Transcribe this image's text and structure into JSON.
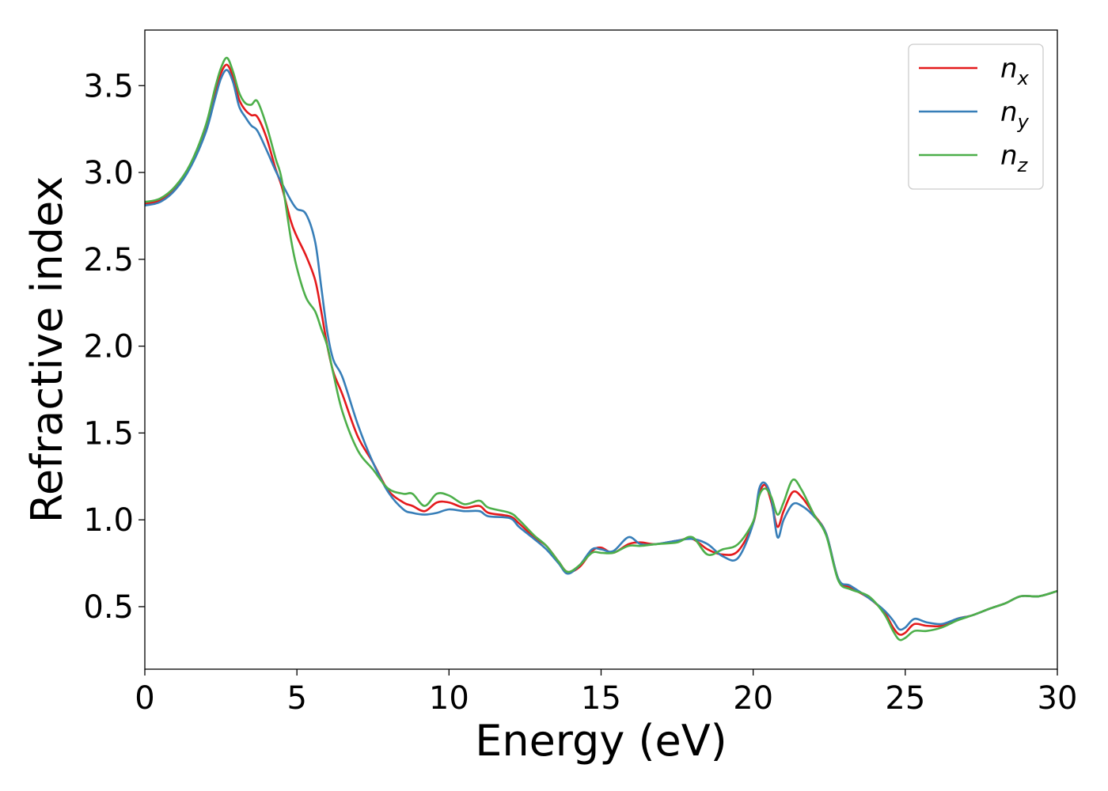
{
  "chart_data": {
    "type": "line",
    "title": "",
    "xlabel": "Energy (eV)",
    "ylabel": "Refractive index",
    "xlim": [
      0,
      30
    ],
    "ylim": [
      0.14,
      3.82
    ],
    "xticks": [
      0,
      5,
      10,
      15,
      20,
      25,
      30
    ],
    "xtick_labels": [
      "0",
      "5",
      "10",
      "15",
      "20",
      "25",
      "30"
    ],
    "yticks": [
      0.5,
      1.0,
      1.5,
      2.0,
      2.5,
      3.0,
      3.5
    ],
    "ytick_labels": [
      "0.5",
      "1.0",
      "1.5",
      "2.0",
      "2.5",
      "3.0",
      "3.5"
    ],
    "grid": false,
    "legend_position": "top-right",
    "series": [
      {
        "name": "n_x",
        "legend_base": "n",
        "legend_sub": "x",
        "color": "#e41a1c",
        "x": [
          0,
          0.5,
          1.0,
          1.5,
          2.0,
          2.3,
          2.5,
          2.7,
          2.9,
          3.1,
          3.3,
          3.5,
          3.7,
          4.0,
          4.3,
          4.5,
          4.8,
          5.0,
          5.3,
          5.6,
          5.8,
          6.0,
          6.2,
          6.5,
          7.0,
          7.5,
          8.0,
          8.5,
          8.8,
          9.2,
          9.6,
          10.0,
          10.5,
          11.0,
          11.3,
          12.0,
          12.3,
          12.8,
          13.2,
          13.6,
          13.9,
          14.3,
          14.7,
          15.0,
          15.4,
          15.9,
          16.3,
          16.8,
          17.5,
          18.0,
          18.5,
          19.0,
          19.5,
          20.0,
          20.2,
          20.4,
          20.6,
          20.8,
          21.0,
          21.3,
          21.6,
          22.0,
          22.4,
          22.8,
          23.2,
          23.8,
          24.3,
          24.6,
          24.8,
          25.0,
          25.3,
          25.7,
          26.2,
          26.7,
          27.2,
          27.8,
          28.3,
          28.8,
          29.4,
          30.0
        ],
        "y": [
          2.82,
          2.84,
          2.91,
          3.04,
          3.25,
          3.45,
          3.57,
          3.62,
          3.55,
          3.42,
          3.36,
          3.33,
          3.32,
          3.2,
          3.02,
          2.92,
          2.72,
          2.63,
          2.52,
          2.38,
          2.2,
          2.0,
          1.85,
          1.72,
          1.48,
          1.33,
          1.17,
          1.1,
          1.08,
          1.05,
          1.1,
          1.1,
          1.07,
          1.08,
          1.04,
          1.02,
          0.98,
          0.9,
          0.85,
          0.76,
          0.7,
          0.73,
          0.82,
          0.84,
          0.81,
          0.86,
          0.87,
          0.86,
          0.88,
          0.89,
          0.83,
          0.8,
          0.82,
          0.98,
          1.15,
          1.2,
          1.1,
          0.96,
          1.05,
          1.16,
          1.13,
          1.03,
          0.92,
          0.66,
          0.61,
          0.55,
          0.47,
          0.38,
          0.34,
          0.35,
          0.4,
          0.39,
          0.39,
          0.43,
          0.45,
          0.49,
          0.52,
          0.56,
          0.56,
          0.59
        ]
      },
      {
        "name": "n_y",
        "legend_base": "n",
        "legend_sub": "y",
        "color": "#377eb8",
        "x": [
          0,
          0.5,
          1.0,
          1.5,
          2.0,
          2.3,
          2.5,
          2.7,
          2.9,
          3.1,
          3.3,
          3.5,
          3.7,
          4.0,
          4.3,
          4.5,
          4.8,
          5.0,
          5.3,
          5.6,
          5.8,
          6.0,
          6.2,
          6.5,
          7.0,
          7.5,
          8.0,
          8.5,
          8.8,
          9.2,
          9.6,
          10.0,
          10.5,
          11.0,
          11.3,
          12.0,
          12.3,
          12.8,
          13.2,
          13.6,
          13.9,
          14.3,
          14.7,
          15.0,
          15.4,
          15.9,
          16.3,
          16.8,
          17.5,
          18.0,
          18.5,
          19.0,
          19.5,
          20.0,
          20.2,
          20.4,
          20.6,
          20.8,
          21.0,
          21.3,
          21.6,
          22.0,
          22.4,
          22.8,
          23.2,
          23.8,
          24.3,
          24.6,
          24.8,
          25.0,
          25.3,
          25.7,
          26.2,
          26.7,
          27.2,
          27.8,
          28.3,
          28.8,
          29.4,
          30.0
        ],
        "y": [
          2.81,
          2.83,
          2.9,
          3.03,
          3.23,
          3.42,
          3.54,
          3.59,
          3.52,
          3.38,
          3.32,
          3.27,
          3.24,
          3.13,
          3.01,
          2.94,
          2.84,
          2.79,
          2.76,
          2.6,
          2.34,
          2.08,
          1.92,
          1.82,
          1.55,
          1.33,
          1.16,
          1.06,
          1.04,
          1.03,
          1.04,
          1.06,
          1.05,
          1.05,
          1.02,
          1.01,
          0.96,
          0.89,
          0.83,
          0.75,
          0.69,
          0.74,
          0.83,
          0.83,
          0.82,
          0.9,
          0.86,
          0.86,
          0.88,
          0.89,
          0.86,
          0.79,
          0.78,
          0.98,
          1.18,
          1.21,
          1.12,
          0.9,
          1.0,
          1.09,
          1.08,
          1.02,
          0.92,
          0.66,
          0.62,
          0.55,
          0.48,
          0.42,
          0.37,
          0.38,
          0.43,
          0.41,
          0.4,
          0.43,
          0.45,
          0.49,
          0.52,
          0.56,
          0.56,
          0.59
        ]
      },
      {
        "name": "n_z",
        "legend_base": "n",
        "legend_sub": "z",
        "color": "#4daf4a",
        "x": [
          0,
          0.5,
          1.0,
          1.5,
          2.0,
          2.3,
          2.5,
          2.7,
          2.9,
          3.1,
          3.3,
          3.5,
          3.7,
          4.0,
          4.3,
          4.5,
          4.8,
          5.0,
          5.3,
          5.6,
          5.8,
          6.0,
          6.2,
          6.5,
          7.0,
          7.5,
          8.0,
          8.5,
          8.8,
          9.2,
          9.6,
          10.0,
          10.5,
          11.0,
          11.3,
          12.0,
          12.3,
          12.8,
          13.2,
          13.6,
          13.9,
          14.3,
          14.7,
          15.0,
          15.4,
          15.9,
          16.3,
          16.8,
          17.5,
          18.0,
          18.5,
          19.0,
          19.5,
          20.0,
          20.2,
          20.4,
          20.6,
          20.8,
          21.0,
          21.3,
          21.6,
          22.0,
          22.4,
          22.8,
          23.2,
          23.8,
          24.3,
          24.6,
          24.8,
          25.0,
          25.3,
          25.7,
          26.2,
          26.7,
          27.2,
          27.8,
          28.3,
          28.8,
          29.4,
          30.0
        ],
        "y": [
          2.83,
          2.85,
          2.92,
          3.05,
          3.27,
          3.48,
          3.6,
          3.66,
          3.58,
          3.46,
          3.4,
          3.39,
          3.41,
          3.27,
          3.08,
          2.96,
          2.62,
          2.45,
          2.28,
          2.2,
          2.1,
          2.0,
          1.84,
          1.62,
          1.4,
          1.29,
          1.18,
          1.15,
          1.15,
          1.08,
          1.15,
          1.14,
          1.09,
          1.11,
          1.07,
          1.04,
          1.0,
          0.91,
          0.85,
          0.76,
          0.7,
          0.74,
          0.81,
          0.81,
          0.81,
          0.85,
          0.85,
          0.86,
          0.87,
          0.9,
          0.8,
          0.83,
          0.86,
          0.99,
          1.14,
          1.18,
          1.13,
          1.03,
          1.1,
          1.23,
          1.17,
          1.03,
          0.91,
          0.65,
          0.6,
          0.56,
          0.46,
          0.36,
          0.31,
          0.32,
          0.36,
          0.36,
          0.38,
          0.42,
          0.45,
          0.49,
          0.52,
          0.56,
          0.56,
          0.59
        ]
      }
    ]
  }
}
